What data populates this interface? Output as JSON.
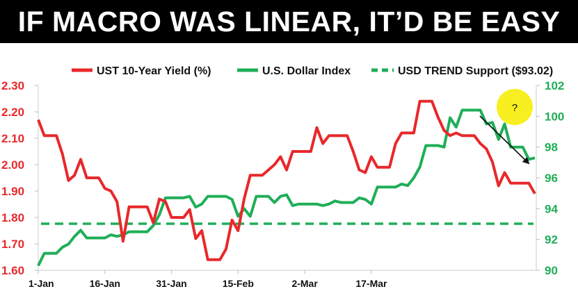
{
  "title": "IF MACRO WAS LINEAR, IT’D BE EASY",
  "chart_data": {
    "type": "line",
    "legend": [
      "UST 10-Year Yield (%)",
      "U.S. Dollar Index",
      "USD TREND Support ($93.02)"
    ],
    "legend_placement": "top",
    "x_labels": [
      "1-Jan",
      "16-Jan",
      "31-Jan",
      "15-Feb",
      "2-Mar",
      "17-Mar"
    ],
    "x_label_positions": [
      0,
      11,
      22,
      33,
      44,
      55
    ],
    "left_axis": {
      "ticks": [
        "1.60",
        "1.70",
        "1.80",
        "1.90",
        "2.00",
        "2.10",
        "2.20",
        "2.30"
      ],
      "range": [
        1.6,
        2.3
      ]
    },
    "right_axis": {
      "ticks": [
        "90",
        "92",
        "94",
        "96",
        "98",
        "100",
        "102"
      ],
      "range": [
        90,
        102
      ]
    },
    "grid": false,
    "colors": {
      "yield": "#e8282b",
      "dollar": "#1fae58",
      "support": "#1fae58",
      "bubble": "#f7ef1f"
    },
    "series": [
      {
        "name": "UST 10-Year Yield (%)",
        "axis": "left",
        "values": [
          2.17,
          2.11,
          2.11,
          2.11,
          2.04,
          1.94,
          1.96,
          2.02,
          1.95,
          1.95,
          1.95,
          1.91,
          1.9,
          1.86,
          1.71,
          1.84,
          1.84,
          1.84,
          1.84,
          1.78,
          1.87,
          1.86,
          1.8,
          1.8,
          1.8,
          1.83,
          1.72,
          1.75,
          1.64,
          1.64,
          1.64,
          1.68,
          1.79,
          1.75,
          1.87,
          1.96,
          1.96,
          1.96,
          1.98,
          2.0,
          2.03,
          1.98,
          2.05,
          2.05,
          2.05,
          2.05,
          2.14,
          2.08,
          2.11,
          2.11,
          2.11,
          2.11,
          2.05,
          1.98,
          1.97,
          2.03,
          1.99,
          1.99,
          1.99,
          2.08,
          2.12,
          2.12,
          2.12,
          2.24,
          2.24,
          2.24,
          2.18,
          2.13,
          2.11,
          2.12,
          2.11,
          2.11,
          2.11,
          2.08,
          2.06,
          2.01,
          1.92,
          1.97,
          1.93,
          1.93,
          1.93,
          1.93,
          1.89
        ]
      },
      {
        "name": "U.S. Dollar Index",
        "axis": "right",
        "values": [
          90.3,
          91.1,
          91.1,
          91.1,
          91.5,
          91.7,
          92.2,
          92.6,
          92.1,
          92.1,
          92.1,
          92.1,
          92.3,
          92.2,
          92.3,
          92.5,
          92.5,
          92.5,
          92.5,
          92.9,
          93.6,
          94.7,
          94.7,
          94.7,
          94.7,
          94.8,
          94.1,
          94.3,
          94.8,
          94.8,
          94.8,
          94.8,
          94.6,
          93.5,
          94.0,
          93.5,
          94.8,
          94.8,
          94.8,
          94.4,
          94.8,
          94.9,
          94.2,
          94.3,
          94.3,
          94.3,
          94.3,
          94.2,
          94.3,
          94.5,
          94.4,
          94.4,
          94.4,
          94.7,
          94.6,
          94.3,
          95.4,
          95.4,
          95.4,
          95.4,
          95.6,
          95.5,
          96.0,
          96.7,
          98.1,
          98.1,
          98.1,
          98.0,
          99.9,
          99.3,
          100.4,
          100.4,
          100.4,
          100.4,
          99.5,
          99.6,
          98.5,
          99.5,
          98.0,
          98.0,
          98.0,
          97.2,
          97.3
        ]
      },
      {
        "name": "USD TREND Support ($93.02)",
        "axis": "right",
        "style": "dashed",
        "value": 93.02
      }
    ],
    "annotations": {
      "bubble_text": "?",
      "arrow": "downward trend arrow from bubble"
    }
  }
}
